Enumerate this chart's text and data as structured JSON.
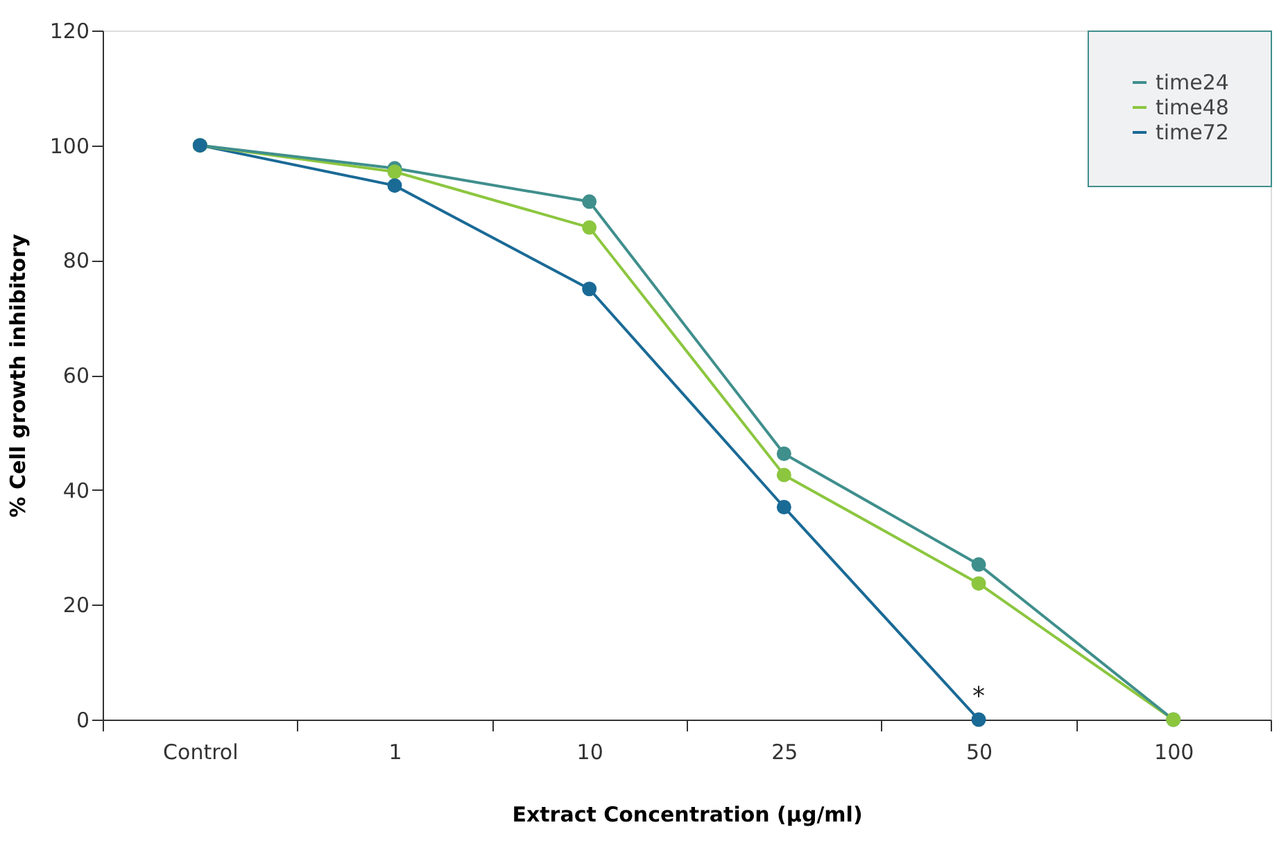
{
  "chart_data": {
    "type": "line",
    "xlabel": "Extract Concentration (µg/ml)",
    "ylabel": "% Cell growth inhibitory",
    "categories": [
      "Control",
      "1",
      "10",
      "25",
      "50",
      "100"
    ],
    "series": [
      {
        "name": "time24",
        "color": "#3f8f8c",
        "values": [
          100,
          96,
          90.2,
          46.3,
          27,
          0
        ]
      },
      {
        "name": "time48",
        "color": "#8cc63f",
        "values": [
          100,
          95.4,
          85.7,
          42.6,
          23.7,
          0
        ]
      },
      {
        "name": "time72",
        "color": "#1a6a96",
        "values": [
          100,
          93,
          75,
          37,
          0,
          null
        ]
      }
    ],
    "annotations": [
      {
        "text": "*",
        "x": "50",
        "y": 0
      }
    ],
    "ylim": [
      0,
      120
    ],
    "yticks": [
      0,
      20,
      40,
      60,
      80,
      100,
      120
    ],
    "grid": false,
    "legend": "top right",
    "marker": "circle",
    "line_style": "solid"
  }
}
